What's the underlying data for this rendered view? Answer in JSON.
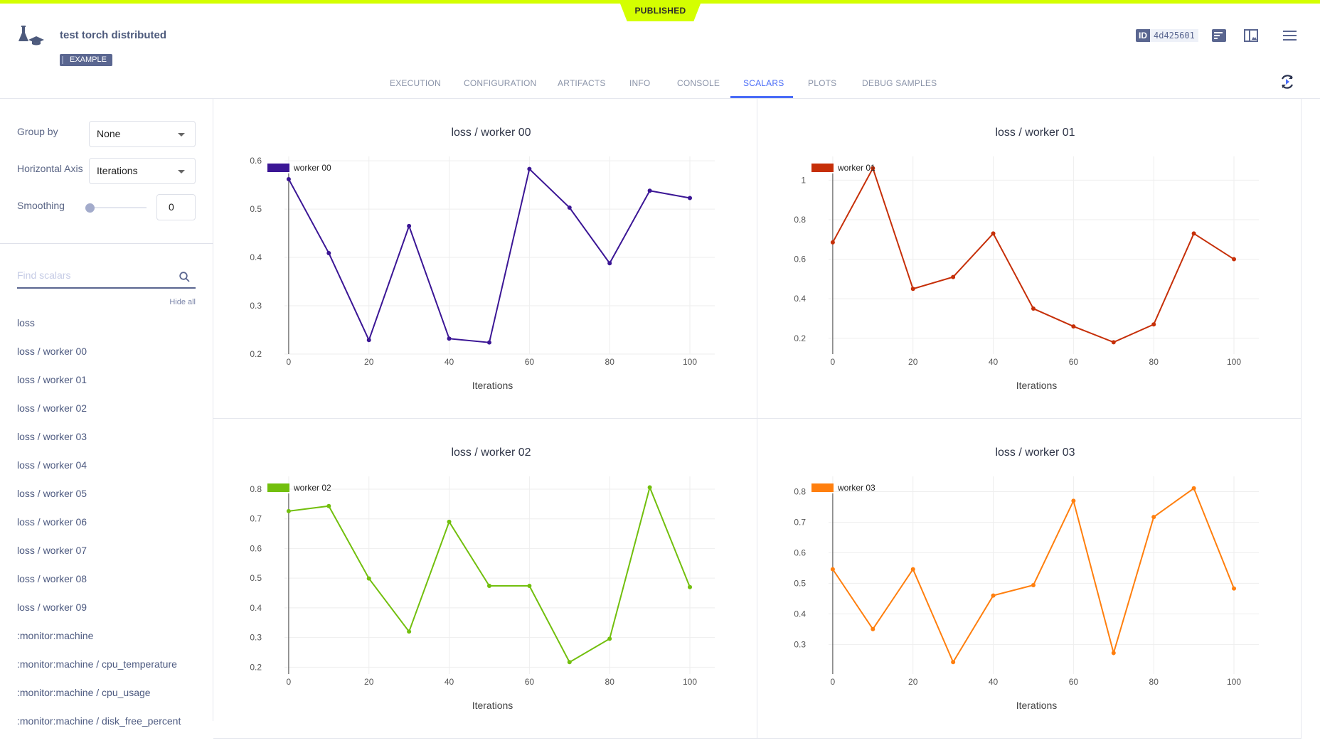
{
  "header": {
    "status": "PUBLISHED",
    "title": "test torch distributed",
    "badge": "EXAMPLE",
    "id_label": "ID",
    "id_value": "4d425601"
  },
  "tabs": [
    {
      "label": "EXECUTION"
    },
    {
      "label": "CONFIGURATION"
    },
    {
      "label": "ARTIFACTS"
    },
    {
      "label": "INFO"
    },
    {
      "label": "CONSOLE"
    },
    {
      "label": "SCALARS",
      "active": true
    },
    {
      "label": "PLOTS"
    },
    {
      "label": "DEBUG SAMPLES"
    }
  ],
  "sidebar": {
    "group_by_label": "Group by",
    "group_by_value": "None",
    "haxis_label": "Horizontal Axis",
    "haxis_value": "Iterations",
    "smoothing_label": "Smoothing",
    "smoothing_value": "0",
    "find_placeholder": "Find scalars",
    "hide_all": "Hide all",
    "items": [
      "loss",
      "loss / worker 00",
      "loss / worker 01",
      "loss / worker 02",
      "loss / worker 03",
      "loss / worker 04",
      "loss / worker 05",
      "loss / worker 06",
      "loss / worker 07",
      "loss / worker 08",
      "loss / worker 09",
      ":monitor:machine",
      ":monitor:machine / cpu_temperature",
      ":monitor:machine / cpu_usage",
      ":monitor:machine / disk_free_percent"
    ]
  },
  "chart_data": [
    {
      "type": "line",
      "title": "loss / worker 00",
      "xlabel": "Iterations",
      "series": [
        {
          "name": "worker 00",
          "color": "#3b1695",
          "x": [
            0,
            10,
            20,
            30,
            40,
            50,
            60,
            70,
            80,
            90,
            100
          ],
          "values": [
            0.562,
            0.409,
            0.229,
            0.465,
            0.232,
            0.224,
            0.583,
            0.503,
            0.388,
            0.538,
            0.523
          ]
        }
      ],
      "xlim": [
        -5.3,
        106.2
      ],
      "ylim": [
        0.2,
        0.609
      ],
      "xticks": [
        0,
        20,
        40,
        60,
        80,
        100
      ],
      "yticks": [
        0.2,
        0.3,
        0.4,
        0.5,
        0.6
      ],
      "ytick_labels": [
        "0.2",
        "0.3",
        "0.4",
        "0.5",
        "0.6"
      ],
      "grid": true,
      "legend": "top-left"
    },
    {
      "type": "line",
      "title": "loss / worker 01",
      "xlabel": "Iterations",
      "series": [
        {
          "name": "worker 01",
          "color": "#c62f08",
          "x": [
            0,
            10,
            20,
            30,
            40,
            50,
            60,
            70,
            80,
            90,
            100
          ],
          "values": [
            0.685,
            1.06,
            0.45,
            0.51,
            0.73,
            0.35,
            0.26,
            0.18,
            0.27,
            0.73,
            0.6
          ]
        }
      ],
      "xlim": [
        -5.3,
        106.2
      ],
      "ylim": [
        0.12,
        1.12
      ],
      "xticks": [
        0,
        20,
        40,
        60,
        80,
        100
      ],
      "yticks": [
        0.2,
        0.4,
        0.6,
        0.8,
        1
      ],
      "ytick_labels": [
        "0.2",
        "0.4",
        "0.6",
        "0.8",
        "1"
      ],
      "grid": true,
      "legend": "top-left"
    },
    {
      "type": "line",
      "title": "loss / worker 02",
      "xlabel": "Iterations",
      "series": [
        {
          "name": "worker 02",
          "color": "#72bf0d",
          "x": [
            0,
            10,
            20,
            30,
            40,
            50,
            60,
            70,
            80,
            90,
            100
          ],
          "values": [
            0.726,
            0.743,
            0.499,
            0.32,
            0.69,
            0.474,
            0.474,
            0.217,
            0.296,
            0.806,
            0.47
          ]
        }
      ],
      "xlim": [
        -5.3,
        106.2
      ],
      "ylim": [
        0.177,
        0.843
      ],
      "xticks": [
        0,
        20,
        40,
        60,
        80,
        100
      ],
      "yticks": [
        0.2,
        0.3,
        0.4,
        0.5,
        0.6,
        0.7,
        0.8
      ],
      "ytick_labels": [
        "0.2",
        "0.3",
        "0.4",
        "0.5",
        "0.6",
        "0.7",
        "0.8"
      ],
      "grid": true,
      "legend": "top-left"
    },
    {
      "type": "line",
      "title": "loss / worker 03",
      "xlabel": "Iterations",
      "series": [
        {
          "name": "worker 03",
          "color": "#ff7f0e",
          "x": [
            0,
            10,
            20,
            30,
            40,
            50,
            60,
            70,
            80,
            90,
            100
          ],
          "values": [
            0.546,
            0.35,
            0.546,
            0.242,
            0.46,
            0.494,
            0.77,
            0.272,
            0.717,
            0.811,
            0.483
          ]
        }
      ],
      "xlim": [
        -5.3,
        106.2
      ],
      "ylim": [
        0.203,
        0.85
      ],
      "xticks": [
        0,
        20,
        40,
        60,
        80,
        100
      ],
      "yticks": [
        0.3,
        0.4,
        0.5,
        0.6,
        0.7,
        0.8
      ],
      "ytick_labels": [
        "0.3",
        "0.4",
        "0.5",
        "0.6",
        "0.7",
        "0.8"
      ],
      "grid": true,
      "legend": "top-left"
    }
  ]
}
